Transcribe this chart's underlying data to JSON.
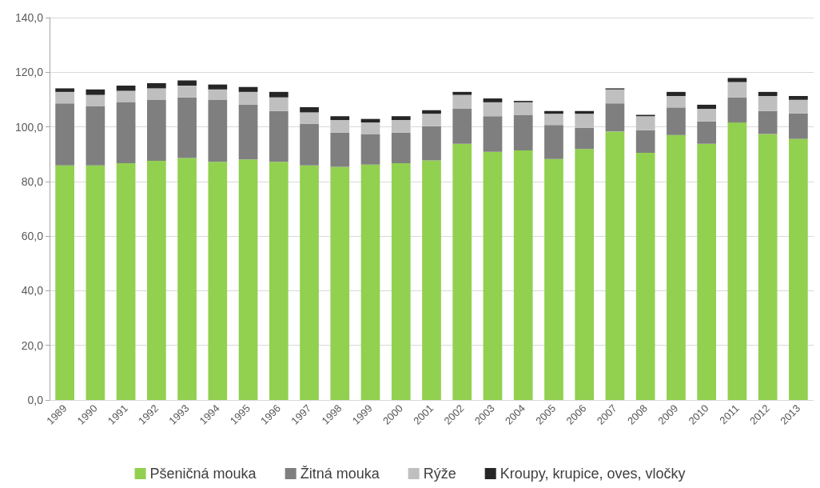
{
  "chart_data": {
    "type": "bar",
    "stacked": true,
    "categories": [
      "1989",
      "1990",
      "1991",
      "1992",
      "1993",
      "1994",
      "1995",
      "1996",
      "1997",
      "1998",
      "1999",
      "2000",
      "2001",
      "2002",
      "2003",
      "2004",
      "2005",
      "2006",
      "2007",
      "2008",
      "2009",
      "2010",
      "2011",
      "2012",
      "2013"
    ],
    "series": [
      {
        "name": "Pšeničná mouka",
        "color": "#92d050",
        "values": [
          85.9,
          85.9,
          86.7,
          87.6,
          88.6,
          87.2,
          88.1,
          87.2,
          85.9,
          85.4,
          86.2,
          86.7,
          87.7,
          93.8,
          90.9,
          91.4,
          88.2,
          91.9,
          98.3,
          90.5,
          97.0,
          93.8,
          101.6,
          97.4,
          95.6
        ]
      },
      {
        "name": "Žitná mouka",
        "color": "#7f7f7f",
        "values": [
          22.7,
          21.7,
          22.4,
          22.4,
          22.2,
          22.8,
          20.0,
          18.6,
          15.2,
          12.5,
          11.2,
          11.2,
          12.5,
          12.8,
          13.0,
          13.0,
          12.5,
          7.8,
          10.3,
          8.3,
          10.1,
          8.2,
          9.2,
          8.4,
          9.3
        ]
      },
      {
        "name": "Rýže",
        "color": "#bfbfbf",
        "values": [
          4.2,
          4.1,
          4.1,
          4.1,
          4.3,
          3.7,
          4.7,
          5.0,
          4.2,
          4.6,
          4.2,
          4.6,
          4.6,
          5.1,
          5.1,
          4.6,
          4.1,
          5.1,
          5.1,
          5.1,
          4.2,
          4.6,
          5.6,
          5.5,
          5.0
        ]
      },
      {
        "name": "Kroupy, krupice, oves, vločky",
        "color": "#262626",
        "values": [
          1.3,
          2.0,
          1.9,
          1.9,
          1.9,
          1.8,
          1.8,
          2.0,
          1.9,
          1.4,
          1.3,
          1.4,
          1.3,
          1.1,
          1.4,
          0.5,
          1.0,
          1.0,
          0.4,
          0.5,
          1.5,
          1.5,
          1.5,
          1.5,
          1.4
        ]
      }
    ],
    "ylim": [
      0,
      140
    ],
    "yticks": [
      {
        "value": 0,
        "label": "0,0"
      },
      {
        "value": 20,
        "label": "20,0"
      },
      {
        "value": 40,
        "label": "40,0"
      },
      {
        "value": 60,
        "label": "60,0"
      },
      {
        "value": 80,
        "label": "80,0"
      },
      {
        "value": 100,
        "label": "100,0"
      },
      {
        "value": 120,
        "label": "120,0"
      },
      {
        "value": 140,
        "label": "140,0"
      }
    ],
    "grid": "y",
    "legend": "bottom"
  }
}
